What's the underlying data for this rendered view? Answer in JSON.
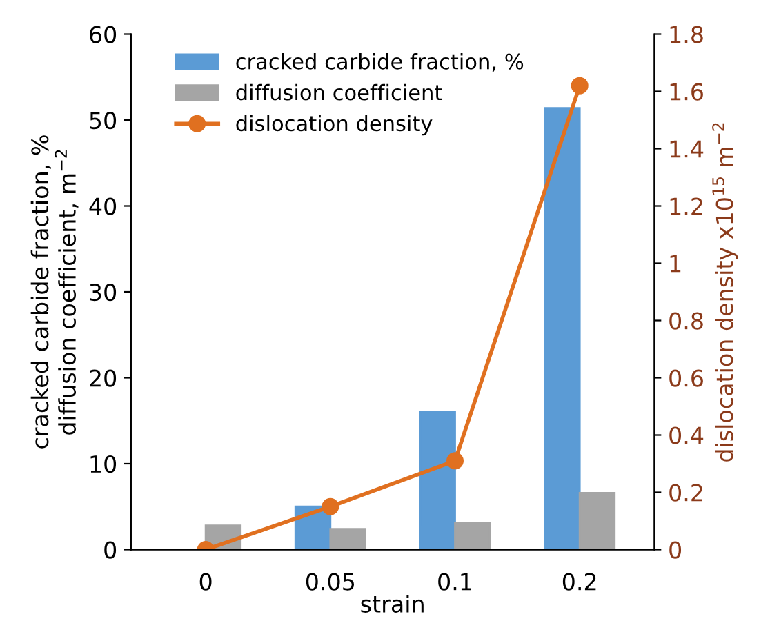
{
  "chart_data": {
    "type": "bar",
    "xlabel": "strain",
    "ylabel": "cracked carbide fraction, %\ndiffusion coefficient, m$^{−2}$",
    "y2label": "dislocation density x10$^{15}$ m$^{−2}$",
    "categories": [
      "0",
      "0.05",
      "0.1",
      "0.2"
    ],
    "series": [
      {
        "name": "cracked carbide fraction, %",
        "color": "#5b9bd5",
        "values": [
          0,
          5,
          16,
          51.4
        ]
      },
      {
        "name": "diffusion coefficient",
        "color": "#a5a5a5",
        "values": [
          2.8,
          2.4,
          3.1,
          6.6
        ]
      },
      {
        "name": "dislocation density",
        "type": "line",
        "axis": "y2",
        "color": "#e07020",
        "marker": "circle",
        "values": [
          0,
          0.15,
          0.31,
          1.62
        ]
      }
    ],
    "ylim": [
      0,
      60
    ],
    "yticks": [
      0,
      10,
      20,
      30,
      40,
      50,
      60
    ],
    "y2lim": [
      0,
      1.8
    ],
    "y2ticks": [
      0,
      0.2,
      0.4,
      0.6,
      0.8,
      1,
      1.2,
      1.4,
      1.6,
      1.8
    ],
    "grid": false,
    "legend": "top left"
  }
}
